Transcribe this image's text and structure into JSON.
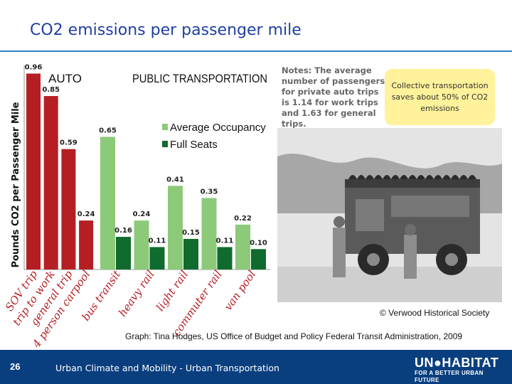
{
  "slide": {
    "title": "CO2 emissions per passenger mile",
    "note": "Notes: The average number of passengers for private auto trips is 1.14 for work trips and 1.63 for general trips.",
    "callout": "Collective transportation saves about 50% of CO2 emissions",
    "photo_credit": "© Verwood Historical Society",
    "source": "Graph: Tina Hodges, US Office of Budget and Policy Federal Transit Administration, 2009",
    "page_number": "26",
    "footer_text": "Urban Climate and Mobility - Urban Transportation",
    "logo_main": "UN●HABITAT",
    "logo_sub": "FOR A BETTER URBAN FUTURE"
  },
  "colors": {
    "auto": "#b51f24",
    "average_occupancy": "#8cc978",
    "full_seats": "#0f6b2e",
    "title": "#1f3f9f",
    "footer": "#0a3f7f"
  },
  "chart_data": {
    "type": "bar",
    "ylabel": "Pounds CO2 per Passenger Mile",
    "groups": [
      "AUTO",
      "PUBLIC TRANSPORTATION"
    ],
    "legend": [
      "Average Occupancy",
      "Full Seats"
    ],
    "legend_position": "top-right",
    "ylim": [
      0,
      1.0
    ],
    "grid": false,
    "auto": {
      "categories": [
        "SOV trip",
        "trip to work",
        "general trip",
        "4 person carpool"
      ],
      "values": [
        0.96,
        0.85,
        0.59,
        0.24
      ],
      "labels": [
        "0.96",
        "0.85",
        "0.59",
        "0.24"
      ]
    },
    "public": {
      "categories": [
        "bus transit",
        "heavy rail",
        "light rail",
        "commuter rail",
        "van pool"
      ],
      "average_occupancy": [
        0.65,
        0.24,
        0.41,
        0.35,
        0.22
      ],
      "average_labels": [
        "0.65",
        "0.24",
        "0.41",
        "0.35",
        "0.22"
      ],
      "full_seats": [
        0.16,
        0.11,
        0.15,
        0.11,
        0.1
      ],
      "full_labels": [
        "0.16",
        "0.11",
        "0.15",
        "0.11",
        "0.10"
      ]
    }
  }
}
